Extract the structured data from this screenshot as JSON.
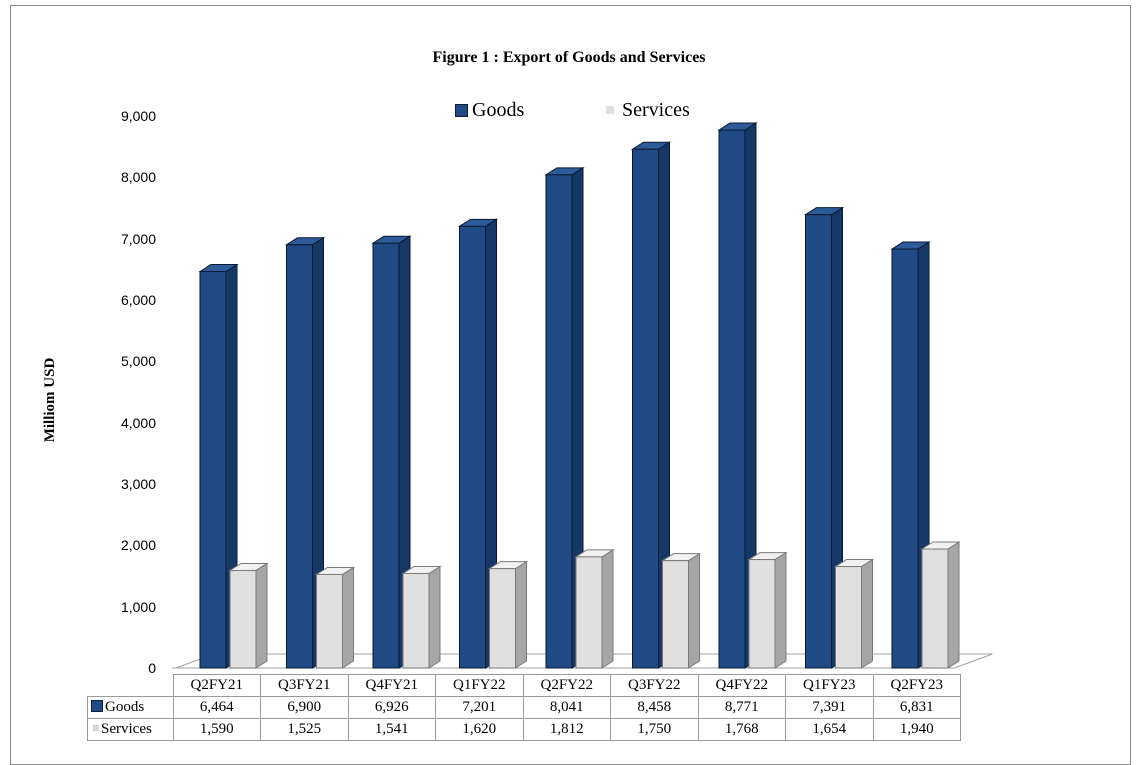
{
  "chart_data": {
    "type": "bar",
    "title": "Figure 1 : Export of Goods and Services",
    "ylabel": "Milliom USD",
    "xlabel": "",
    "ylim": [
      0,
      9000
    ],
    "yticks": [
      "0",
      "1,000",
      "2,000",
      "3,000",
      "4,000",
      "5,000",
      "6,000",
      "7,000",
      "8,000",
      "9,000"
    ],
    "legend_position": "top-center",
    "grid": false,
    "categories": [
      "Q2FY21",
      "Q3FY21",
      "Q4FY21",
      "Q1FY22",
      "Q2FY22",
      "Q3FY22",
      "Q4FY22",
      "Q1FY23",
      "Q2FY23"
    ],
    "series": [
      {
        "name": "Goods",
        "color": "#1f4a85",
        "values": [
          6464,
          6900,
          6926,
          7201,
          8041,
          8458,
          8771,
          7391,
          6831
        ],
        "labels": [
          "6,464",
          "6,900",
          "6,926",
          "7,201",
          "8,041",
          "8,458",
          "8,771",
          "7,391",
          "6,831"
        ]
      },
      {
        "name": "Services",
        "color": "#e0e0e0",
        "values": [
          1590,
          1525,
          1541,
          1620,
          1812,
          1750,
          1768,
          1654,
          1940
        ],
        "labels": [
          "1,590",
          "1,525",
          "1,541",
          "1,620",
          "1,812",
          "1,750",
          "1,768",
          "1,654",
          "1,940"
        ]
      }
    ]
  }
}
